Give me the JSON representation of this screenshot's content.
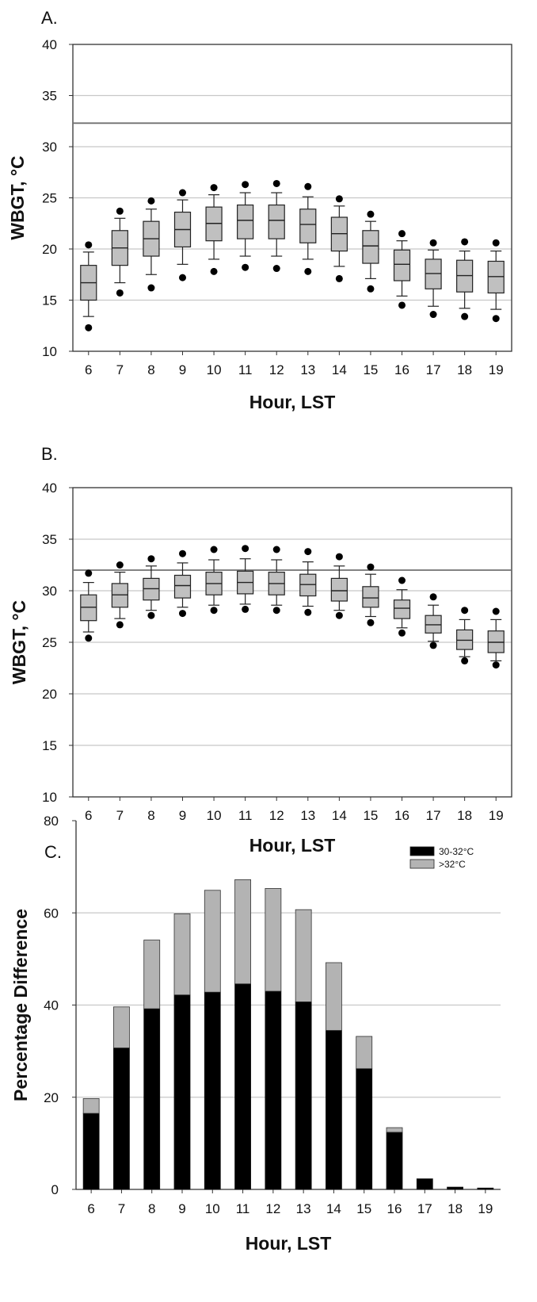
{
  "chart_data": [
    {
      "type": "box",
      "panel_label": "A.",
      "xlabel": "Hour, LST",
      "ylabel": "WBGT, °C",
      "ylim": [
        10,
        40
      ],
      "yticks": [
        10,
        15,
        20,
        25,
        30,
        35,
        40
      ],
      "grid": true,
      "threshold": 32.3,
      "categories": [
        "6",
        "7",
        "8",
        "9",
        "10",
        "11",
        "12",
        "13",
        "14",
        "15",
        "16",
        "17",
        "18",
        "19"
      ],
      "boxes": [
        {
          "low_dot": 12.3,
          "whisker_low": 13.4,
          "q1": 15.0,
          "median": 16.7,
          "q3": 18.4,
          "whisker_high": 19.7,
          "high_dot": 20.4
        },
        {
          "low_dot": 15.7,
          "whisker_low": 16.7,
          "q1": 18.4,
          "median": 20.1,
          "q3": 21.8,
          "whisker_high": 23.0,
          "high_dot": 23.7
        },
        {
          "low_dot": 16.2,
          "whisker_low": 17.5,
          "q1": 19.3,
          "median": 21.0,
          "q3": 22.7,
          "whisker_high": 23.9,
          "high_dot": 24.7
        },
        {
          "low_dot": 17.2,
          "whisker_low": 18.5,
          "q1": 20.2,
          "median": 21.9,
          "q3": 23.6,
          "whisker_high": 24.8,
          "high_dot": 25.5
        },
        {
          "low_dot": 17.8,
          "whisker_low": 19.0,
          "q1": 20.8,
          "median": 22.5,
          "q3": 24.1,
          "whisker_high": 25.3,
          "high_dot": 26.0
        },
        {
          "low_dot": 18.2,
          "whisker_low": 19.3,
          "q1": 21.0,
          "median": 22.8,
          "q3": 24.3,
          "whisker_high": 25.5,
          "high_dot": 26.3
        },
        {
          "low_dot": 18.1,
          "whisker_low": 19.3,
          "q1": 21.0,
          "median": 22.8,
          "q3": 24.3,
          "whisker_high": 25.5,
          "high_dot": 26.4
        },
        {
          "low_dot": 17.8,
          "whisker_low": 19.0,
          "q1": 20.6,
          "median": 22.4,
          "q3": 23.9,
          "whisker_high": 25.1,
          "high_dot": 26.1
        },
        {
          "low_dot": 17.1,
          "whisker_low": 18.3,
          "q1": 19.8,
          "median": 21.5,
          "q3": 23.1,
          "whisker_high": 24.2,
          "high_dot": 24.9
        },
        {
          "low_dot": 16.1,
          "whisker_low": 17.1,
          "q1": 18.6,
          "median": 20.3,
          "q3": 21.8,
          "whisker_high": 22.7,
          "high_dot": 23.4
        },
        {
          "low_dot": 14.5,
          "whisker_low": 15.4,
          "q1": 16.9,
          "median": 18.5,
          "q3": 19.9,
          "whisker_high": 20.8,
          "high_dot": 21.5
        },
        {
          "low_dot": 13.6,
          "whisker_low": 14.4,
          "q1": 16.1,
          "median": 17.6,
          "q3": 19.0,
          "whisker_high": 19.9,
          "high_dot": 20.6
        },
        {
          "low_dot": 13.4,
          "whisker_low": 14.2,
          "q1": 15.8,
          "median": 17.4,
          "q3": 18.9,
          "whisker_high": 19.8,
          "high_dot": 20.7
        },
        {
          "low_dot": 13.2,
          "whisker_low": 14.1,
          "q1": 15.7,
          "median": 17.3,
          "q3": 18.8,
          "whisker_high": 19.8,
          "high_dot": 20.6
        }
      ]
    },
    {
      "type": "box",
      "panel_label": "B.",
      "xlabel": "Hour, LST",
      "ylabel": "WBGT, °C",
      "ylim": [
        10,
        40
      ],
      "yticks": [
        10,
        15,
        20,
        25,
        30,
        35,
        40
      ],
      "grid": true,
      "threshold": 32.0,
      "categories": [
        "6",
        "7",
        "8",
        "9",
        "10",
        "11",
        "12",
        "13",
        "14",
        "15",
        "16",
        "17",
        "18",
        "19"
      ],
      "boxes": [
        {
          "low_dot": 25.4,
          "whisker_low": 26.0,
          "q1": 27.1,
          "median": 28.4,
          "q3": 29.6,
          "whisker_high": 30.8,
          "high_dot": 31.7
        },
        {
          "low_dot": 26.7,
          "whisker_low": 27.3,
          "q1": 28.4,
          "median": 29.6,
          "q3": 30.7,
          "whisker_high": 31.8,
          "high_dot": 32.5
        },
        {
          "low_dot": 27.6,
          "whisker_low": 28.1,
          "q1": 29.1,
          "median": 30.2,
          "q3": 31.2,
          "whisker_high": 32.4,
          "high_dot": 33.1
        },
        {
          "low_dot": 27.8,
          "whisker_low": 28.4,
          "q1": 29.3,
          "median": 30.5,
          "q3": 31.5,
          "whisker_high": 32.7,
          "high_dot": 33.6
        },
        {
          "low_dot": 28.1,
          "whisker_low": 28.6,
          "q1": 29.6,
          "median": 30.7,
          "q3": 31.8,
          "whisker_high": 33.0,
          "high_dot": 34.0
        },
        {
          "low_dot": 28.2,
          "whisker_low": 28.7,
          "q1": 29.7,
          "median": 30.8,
          "q3": 31.9,
          "whisker_high": 33.1,
          "high_dot": 34.1
        },
        {
          "low_dot": 28.1,
          "whisker_low": 28.6,
          "q1": 29.6,
          "median": 30.7,
          "q3": 31.8,
          "whisker_high": 33.0,
          "high_dot": 34.0
        },
        {
          "low_dot": 27.9,
          "whisker_low": 28.5,
          "q1": 29.5,
          "median": 30.6,
          "q3": 31.6,
          "whisker_high": 32.8,
          "high_dot": 33.8
        },
        {
          "low_dot": 27.6,
          "whisker_low": 28.1,
          "q1": 29.0,
          "median": 30.0,
          "q3": 31.2,
          "whisker_high": 32.4,
          "high_dot": 33.3
        },
        {
          "low_dot": 26.9,
          "whisker_low": 27.5,
          "q1": 28.4,
          "median": 29.3,
          "q3": 30.4,
          "whisker_high": 31.6,
          "high_dot": 32.3
        },
        {
          "low_dot": 25.9,
          "whisker_low": 26.4,
          "q1": 27.3,
          "median": 28.3,
          "q3": 29.1,
          "whisker_high": 30.1,
          "high_dot": 31.0
        },
        {
          "low_dot": 24.7,
          "whisker_low": 25.1,
          "q1": 25.9,
          "median": 26.7,
          "q3": 27.6,
          "whisker_high": 28.6,
          "high_dot": 29.4
        },
        {
          "low_dot": 23.2,
          "whisker_low": 23.6,
          "q1": 24.3,
          "median": 25.2,
          "q3": 26.2,
          "whisker_high": 27.2,
          "high_dot": 28.1
        },
        {
          "low_dot": 22.8,
          "whisker_low": 23.2,
          "q1": 24.0,
          "median": 25.0,
          "q3": 26.1,
          "whisker_high": 27.2,
          "high_dot": 28.0
        }
      ]
    },
    {
      "type": "bar",
      "stacked": true,
      "panel_label": "C.",
      "xlabel": "Hour, LST",
      "ylabel": "Percentage Difference",
      "ylim": [
        0,
        80
      ],
      "yticks": [
        0,
        20,
        40,
        60,
        80
      ],
      "grid": true,
      "legend_position": "top-right",
      "categories": [
        "6",
        "7",
        "8",
        "9",
        "10",
        "11",
        "12",
        "13",
        "14",
        "15",
        "16",
        "17",
        "18",
        "19"
      ],
      "series": [
        {
          "name": "30-32°C",
          "color": "#000000",
          "values": [
            16.5,
            30.7,
            39.2,
            42.2,
            42.8,
            44.6,
            43.0,
            40.7,
            34.5,
            26.2,
            12.4,
            2.3,
            0.5,
            0.3
          ]
        },
        {
          "name": ">32°C",
          "color": "#b3b3b3",
          "values": [
            3.2,
            8.9,
            14.9,
            17.6,
            22.1,
            22.6,
            22.3,
            20.0,
            14.7,
            7.0,
            1.0,
            0.0,
            0.0,
            0.0
          ]
        }
      ]
    }
  ],
  "colors": {
    "box_fill": "#c0c0c0",
    "grid": "#c8c8c8",
    "threshold": "#707070",
    "axis": "#333333"
  }
}
